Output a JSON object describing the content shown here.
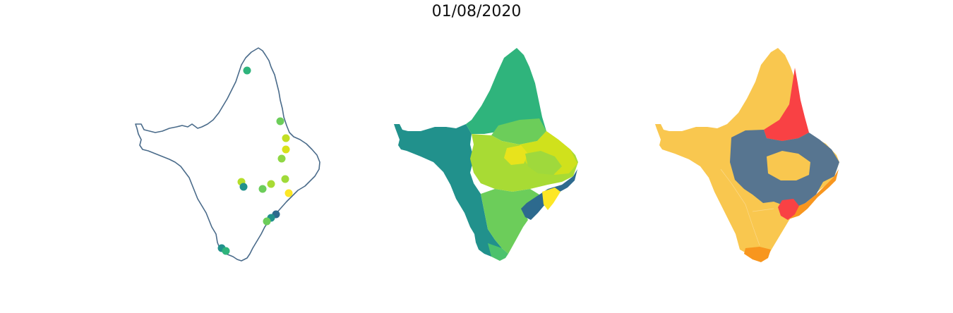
{
  "title": "01/08/2020",
  "colors": {
    "outline": "#4a6b8a",
    "viridis": [
      "#2d6a8e",
      "#21918c",
      "#2fb47c",
      "#6ccd5a",
      "#a8db34",
      "#d0e11c",
      "#fde725"
    ],
    "risk": {
      "low": "#f9c74f",
      "medium": "#f8961e",
      "high": "#f94144",
      "none": "#577590"
    }
  },
  "maps": [
    {
      "name": "points",
      "style": "outline-with-points"
    },
    {
      "name": "choropleth-gradient",
      "style": "viridis"
    },
    {
      "name": "choropleth-risk",
      "style": "categorical"
    }
  ]
}
